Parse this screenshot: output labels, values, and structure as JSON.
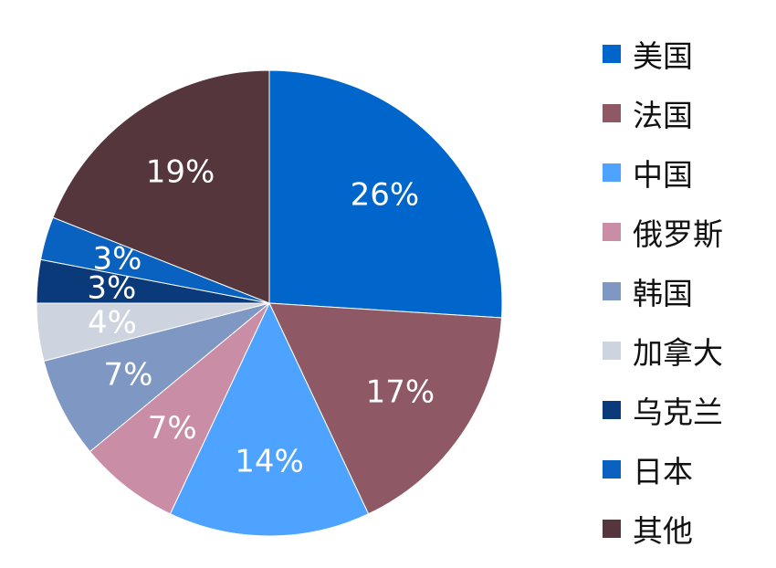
{
  "chart_data": {
    "type": "pie",
    "slices": [
      {
        "name": "美国",
        "value": 26,
        "label": "26%",
        "color": "#0066CC"
      },
      {
        "name": "法国",
        "value": 17,
        "label": "17%",
        "color": "#8E5865"
      },
      {
        "name": "中国",
        "value": 14,
        "label": "14%",
        "color": "#4DA3FF"
      },
      {
        "name": "俄罗斯",
        "value": 7,
        "label": "7%",
        "color": "#C98EA6"
      },
      {
        "name": "韩国",
        "value": 7,
        "label": "7%",
        "color": "#7F97C3"
      },
      {
        "name": "加拿大",
        "value": 4,
        "label": "4%",
        "color": "#CDD4DF"
      },
      {
        "name": "乌克兰",
        "value": 3,
        "label": "3%",
        "color": "#0A3A7A"
      },
      {
        "name": "日本",
        "value": 3,
        "label": "3%",
        "color": "#0A62C0"
      },
      {
        "name": "其他",
        "value": 19,
        "label": "19%",
        "color": "#55363D"
      }
    ],
    "start_angle": "12 o'clock",
    "direction": "clockwise",
    "legend_placement": "right"
  }
}
